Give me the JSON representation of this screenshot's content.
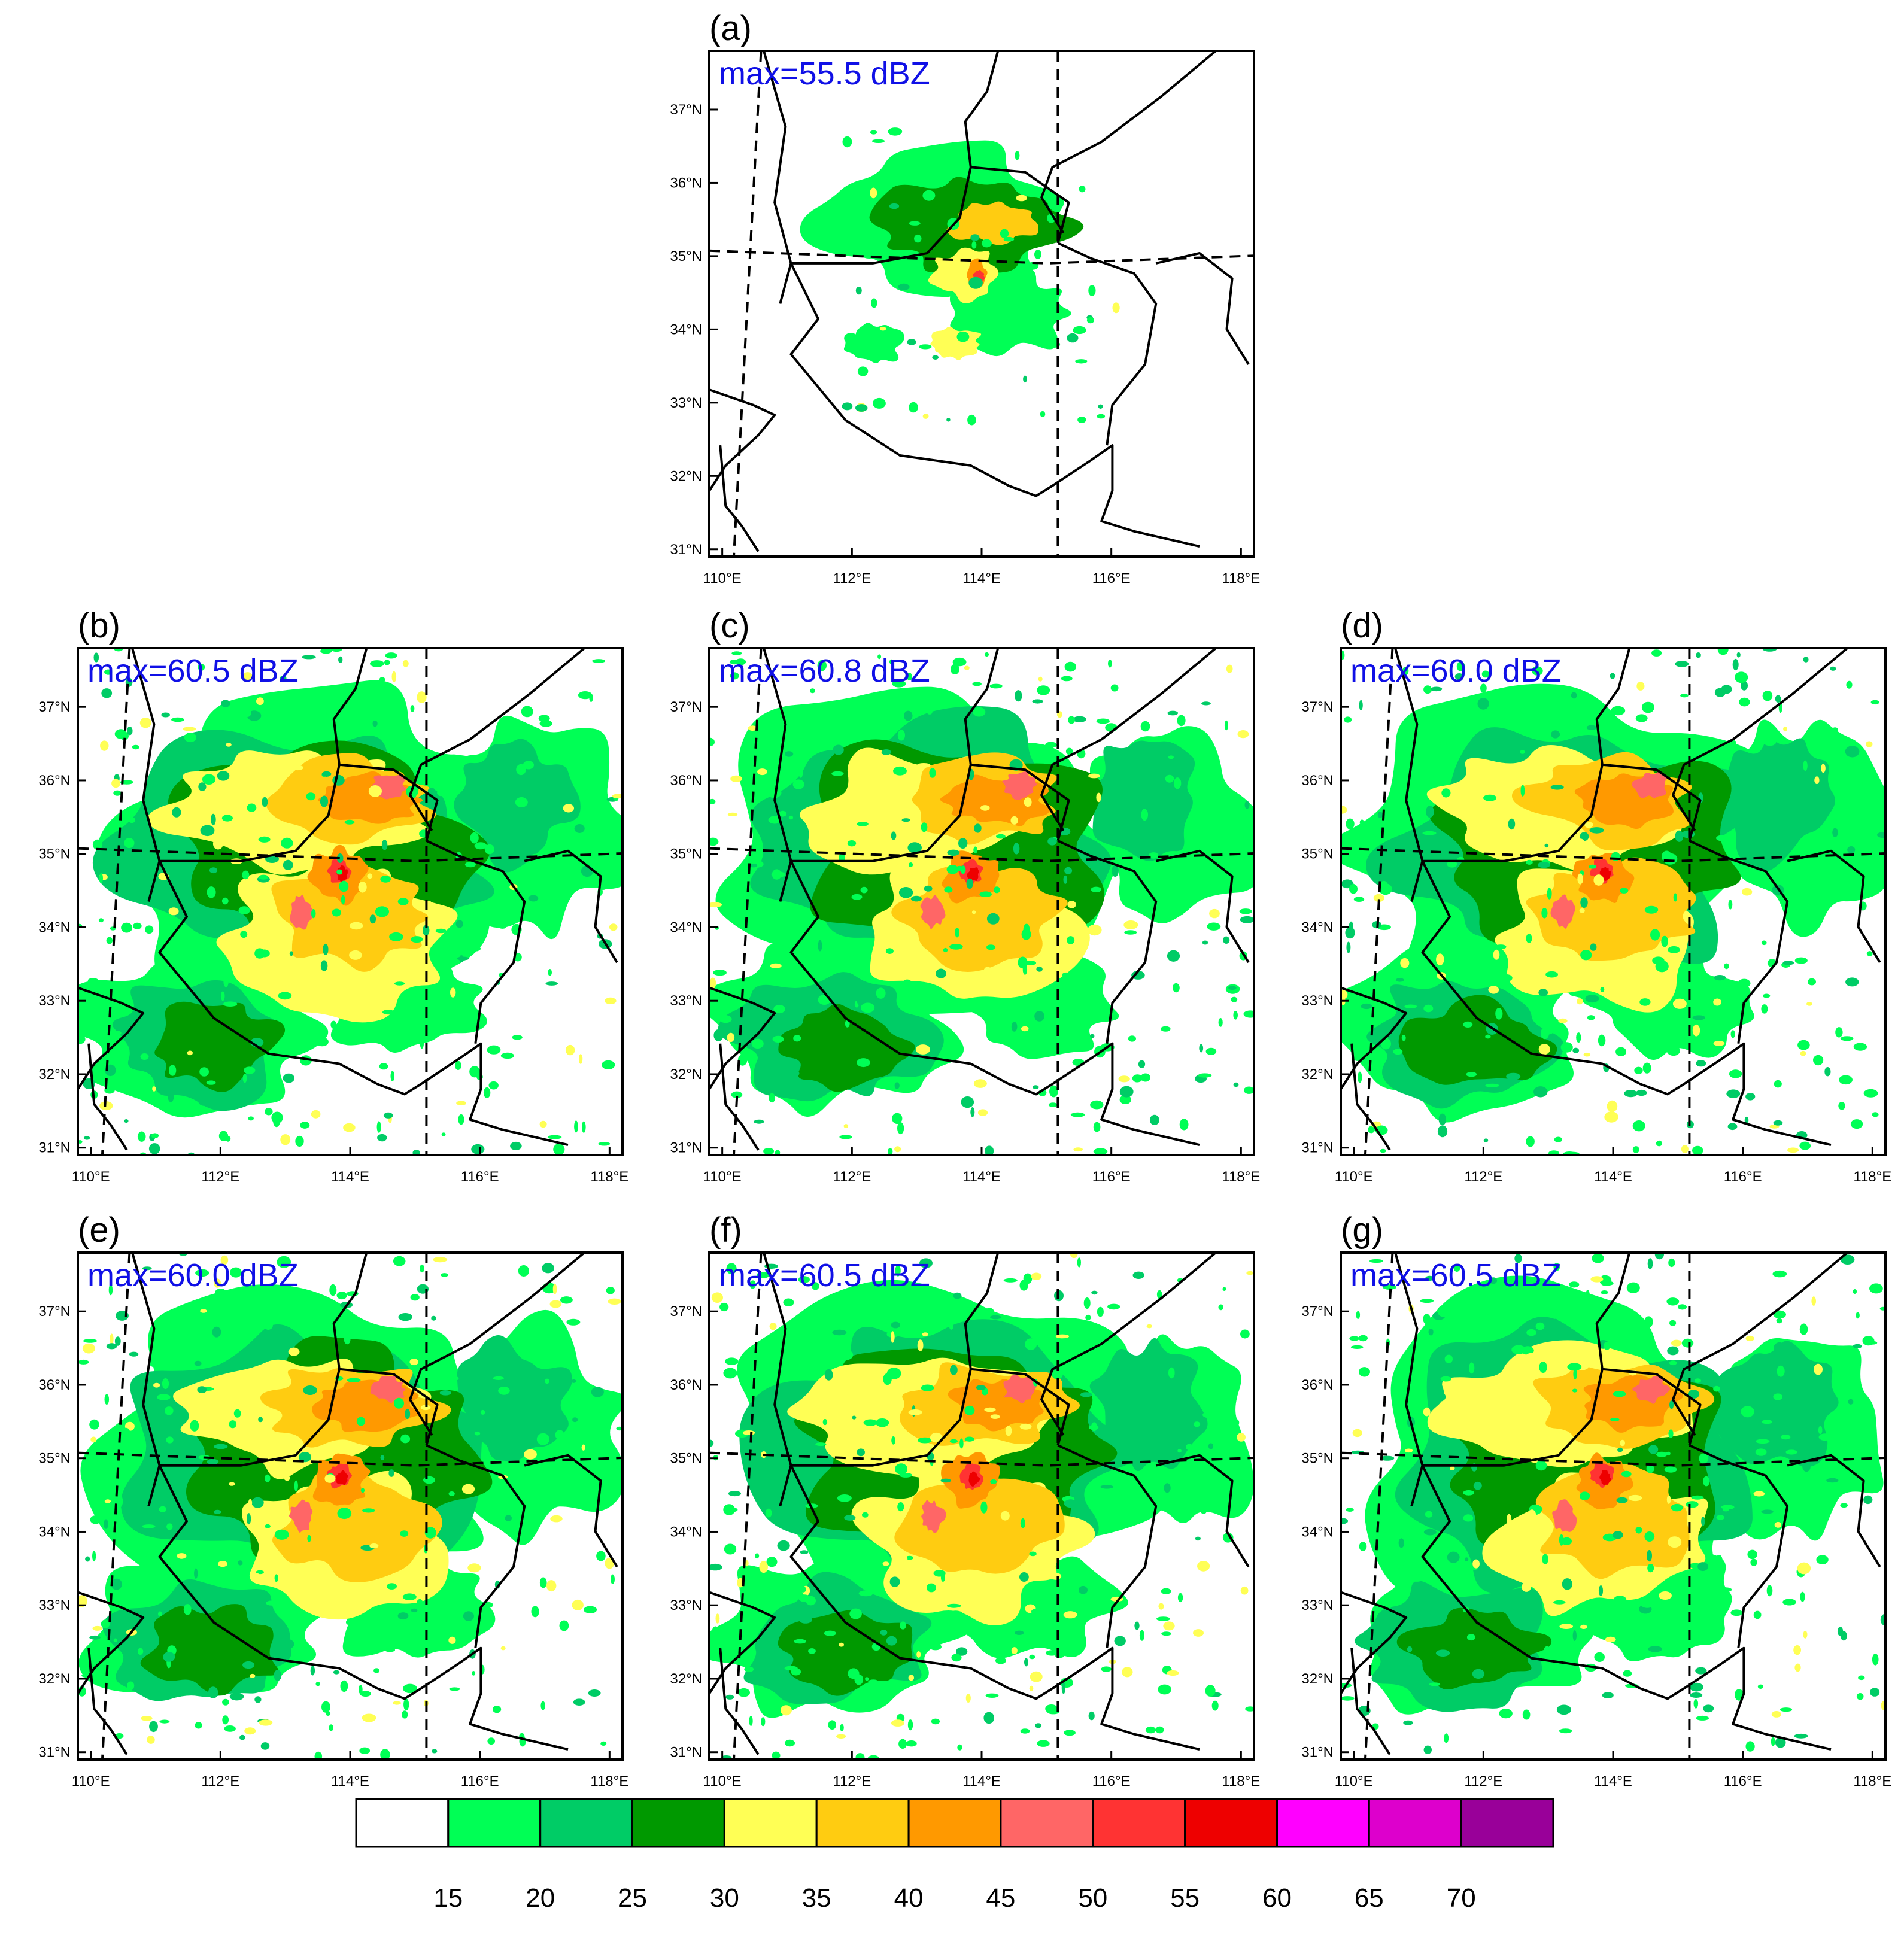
{
  "panels": [
    {
      "label": "(a)",
      "max_text": "max=55.5 dBZ",
      "intensity": 0.35
    },
    {
      "label": "(b)",
      "max_text": "max=60.5 dBZ",
      "intensity": 1.0
    },
    {
      "label": "(c)",
      "max_text": "max=60.8 dBZ",
      "intensity": 1.0
    },
    {
      "label": "(d)",
      "max_text": "max=60.0 dBZ",
      "intensity": 1.0
    },
    {
      "label": "(e)",
      "max_text": "max=60.0 dBZ",
      "intensity": 1.0
    },
    {
      "label": "(f)",
      "max_text": "max=60.5 dBZ",
      "intensity": 1.0
    },
    {
      "label": "(g)",
      "max_text": "max=60.5 dBZ",
      "intensity": 1.0
    }
  ],
  "axes": {
    "lon_ticks": [
      "110°E",
      "112°E",
      "114°E",
      "116°E",
      "118°E"
    ],
    "lat_ticks": [
      "37°N",
      "36°N",
      "35°N",
      "34°N",
      "33°N",
      "32°N",
      "31°N"
    ]
  },
  "colorbar": {
    "labels": [
      "15",
      "20",
      "25",
      "30",
      "35",
      "40",
      "45",
      "50",
      "55",
      "60",
      "65",
      "70"
    ],
    "colors": [
      "#ffffff",
      "#00ff55",
      "#00cc66",
      "#009900",
      "#ffff55",
      "#ffcc11",
      "#ff9900",
      "#ff6666",
      "#ff3333",
      "#ee0000",
      "#ff00ff",
      "#dd00cc",
      "#990099"
    ]
  },
  "chart_data": {
    "type": "heatmap",
    "variable": "radar reflectivity",
    "unit": "dBZ",
    "lon_range": [
      109.8,
      118.2
    ],
    "lat_range": [
      30.9,
      37.8
    ],
    "levels": [
      15,
      20,
      25,
      30,
      35,
      40,
      45,
      50,
      55,
      60,
      65,
      70
    ],
    "panel_max_dbz": [
      55.5,
      60.5,
      60.8,
      60.0,
      60.0,
      60.5,
      60.5
    ]
  }
}
